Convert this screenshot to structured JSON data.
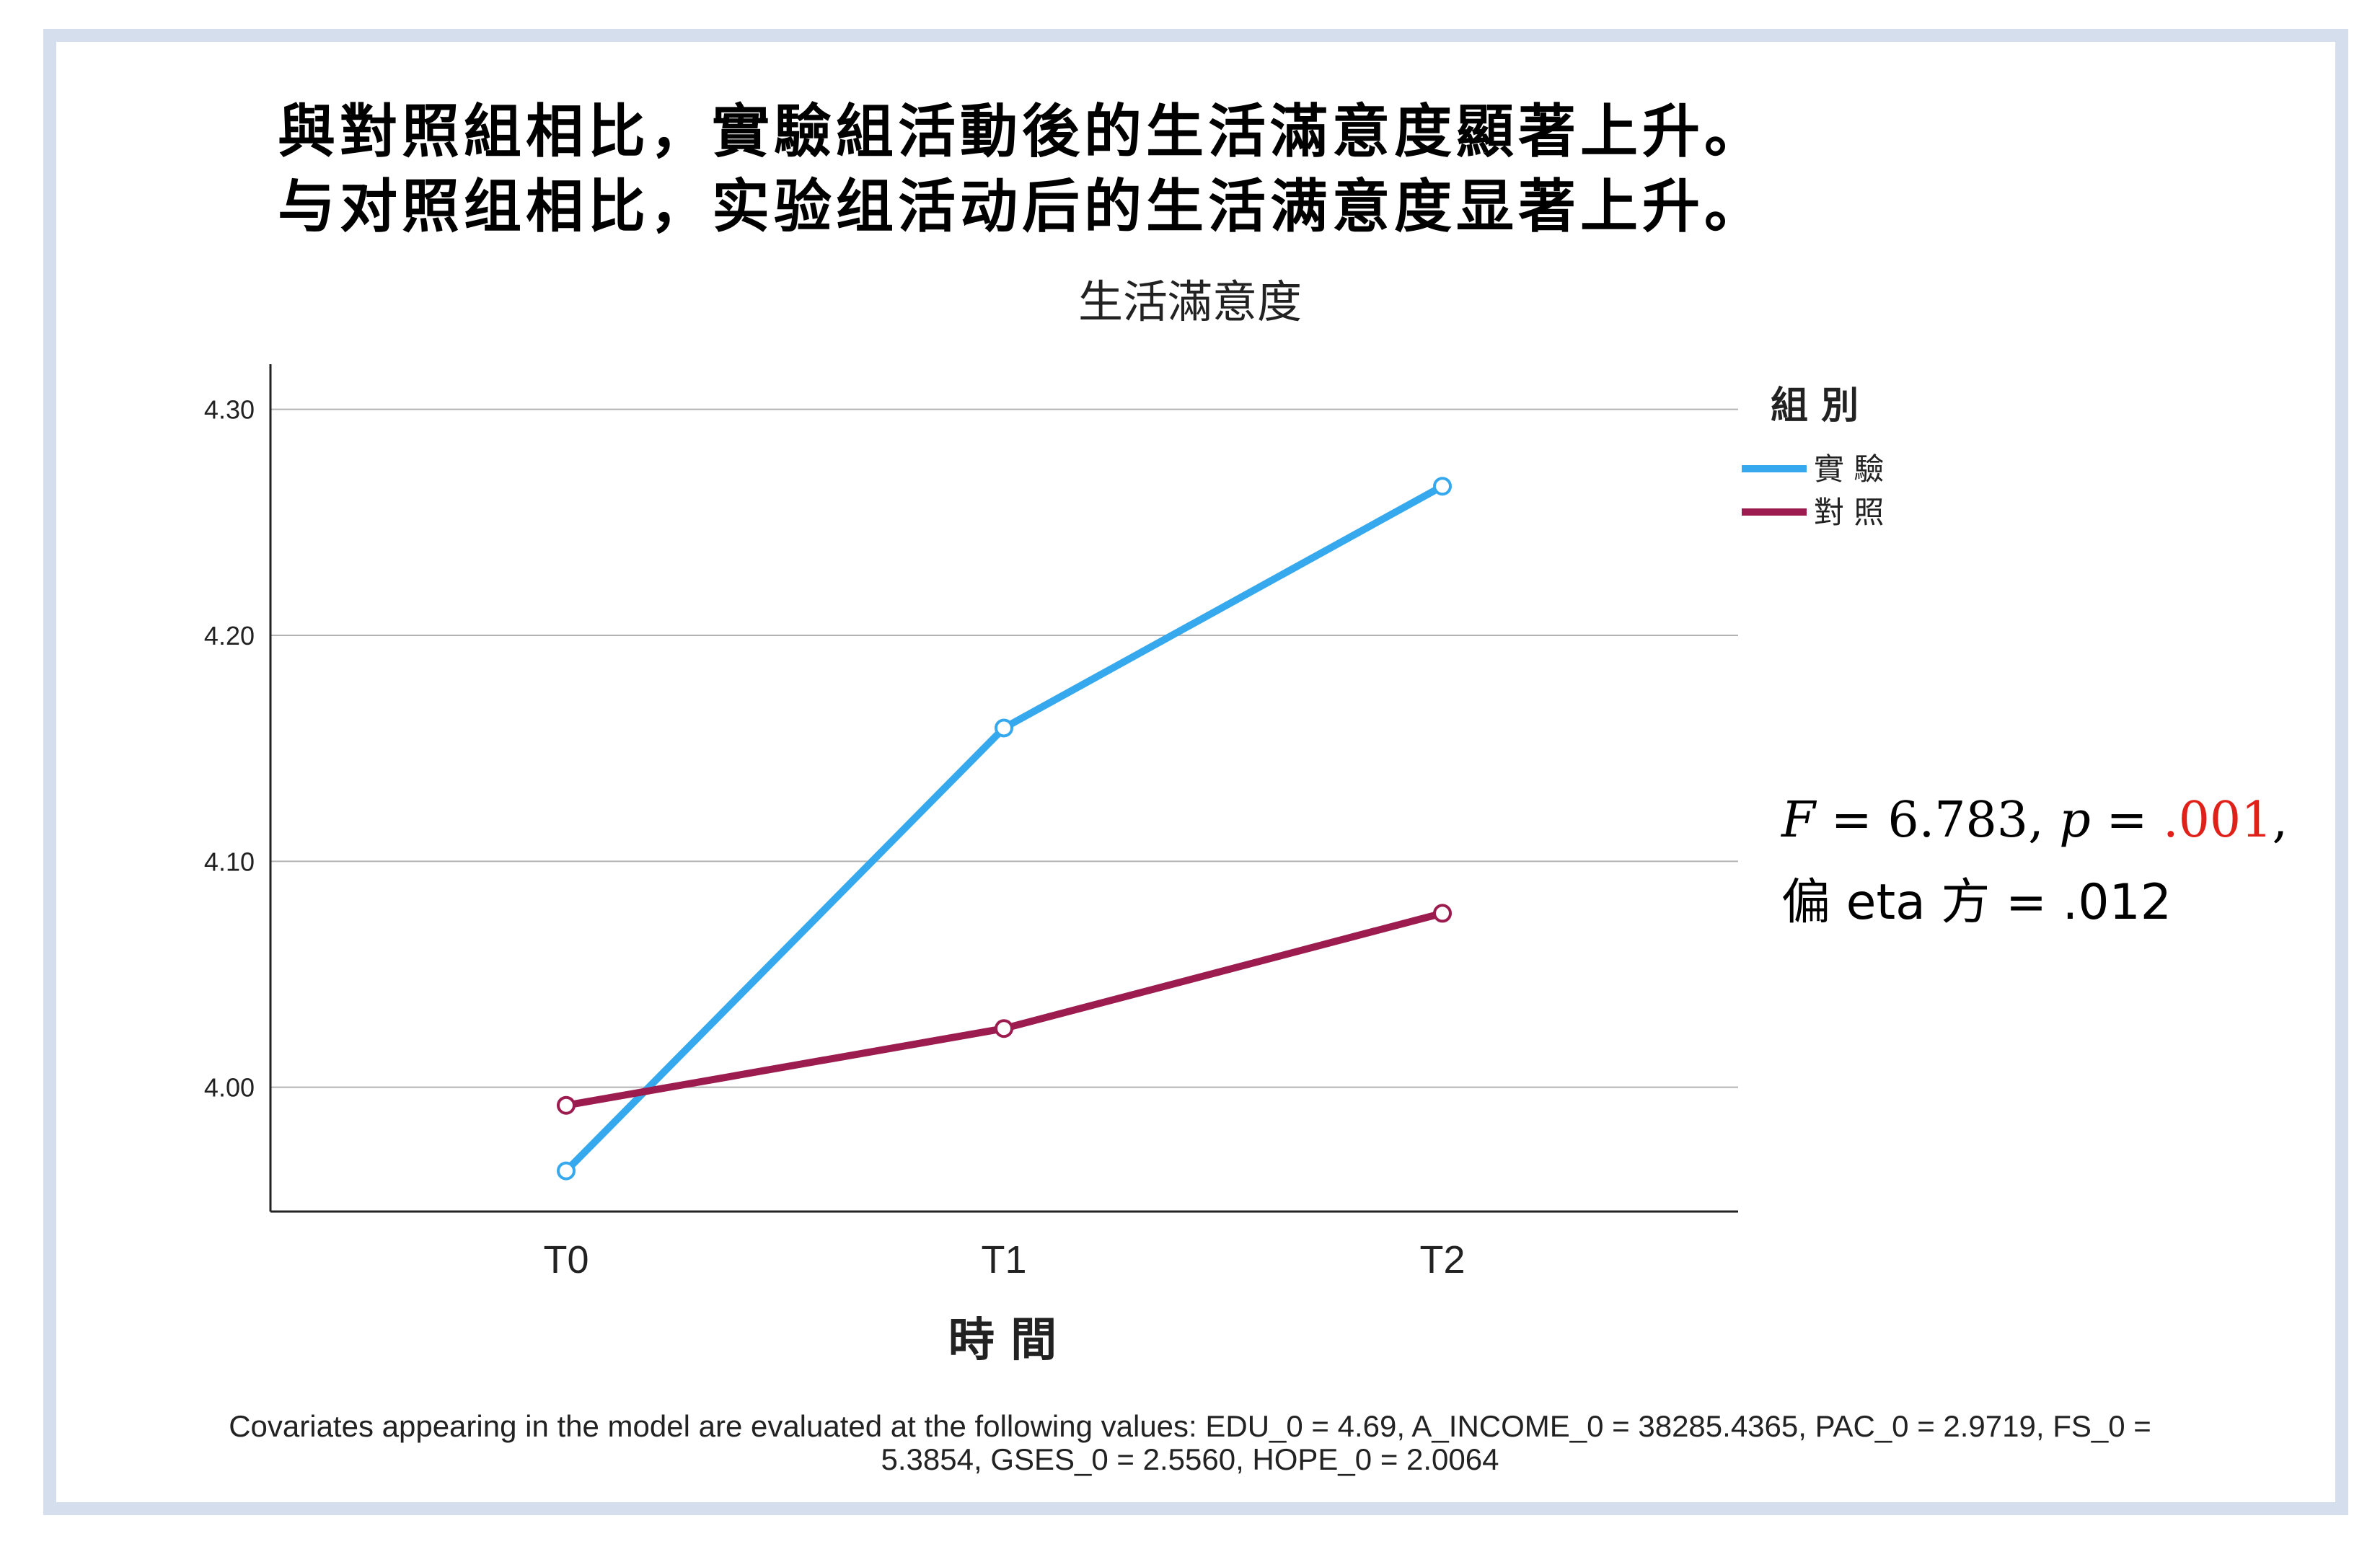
{
  "headline": {
    "traditional": "與對照組相比，實驗組活動後的生活滿意度顯著上升。",
    "simplified": "与对照组相比，实验组活动后的生活满意度显著上升。"
  },
  "stats": {
    "f_label": "F",
    "f_text": " = 6.783, ",
    "p_label": "p",
    "p_eq": " = ",
    "p_value": ".001",
    "p_trail": ",",
    "eta_text": "偏 eta 方 = .012",
    "p_value_color": "#e0211a"
  },
  "footnote": {
    "line1": "Covariates appearing in the model are evaluated at the following values: EDU_0 = 4.69, A_INCOME_0 = 38285.4365, PAC_0 = 2.9719, FS_0 =",
    "line2": "5.3854, GSES_0 = 2.5560, HOPE_0 = 2.0064"
  },
  "chart_data": {
    "type": "line",
    "title": "生活滿意度",
    "xlabel": "時 間",
    "ylabel": "",
    "categories": [
      "T0",
      "T1",
      "T2"
    ],
    "ylim": [
      3.945,
      4.32
    ],
    "yticks": [
      4.0,
      4.1,
      4.2,
      4.3
    ],
    "ytick_labels": [
      "4.00",
      "4.10",
      "4.20",
      "4.30"
    ],
    "grid": true,
    "legend_title": "組 別",
    "legend_position": "top-right",
    "series": [
      {
        "name": "實 驗",
        "values": [
          3.963,
          4.159,
          4.266
        ],
        "color": "#36a9ee"
      },
      {
        "name": "對 照",
        "values": [
          3.992,
          4.026,
          4.077
        ],
        "color": "#9c1c4f"
      }
    ]
  }
}
